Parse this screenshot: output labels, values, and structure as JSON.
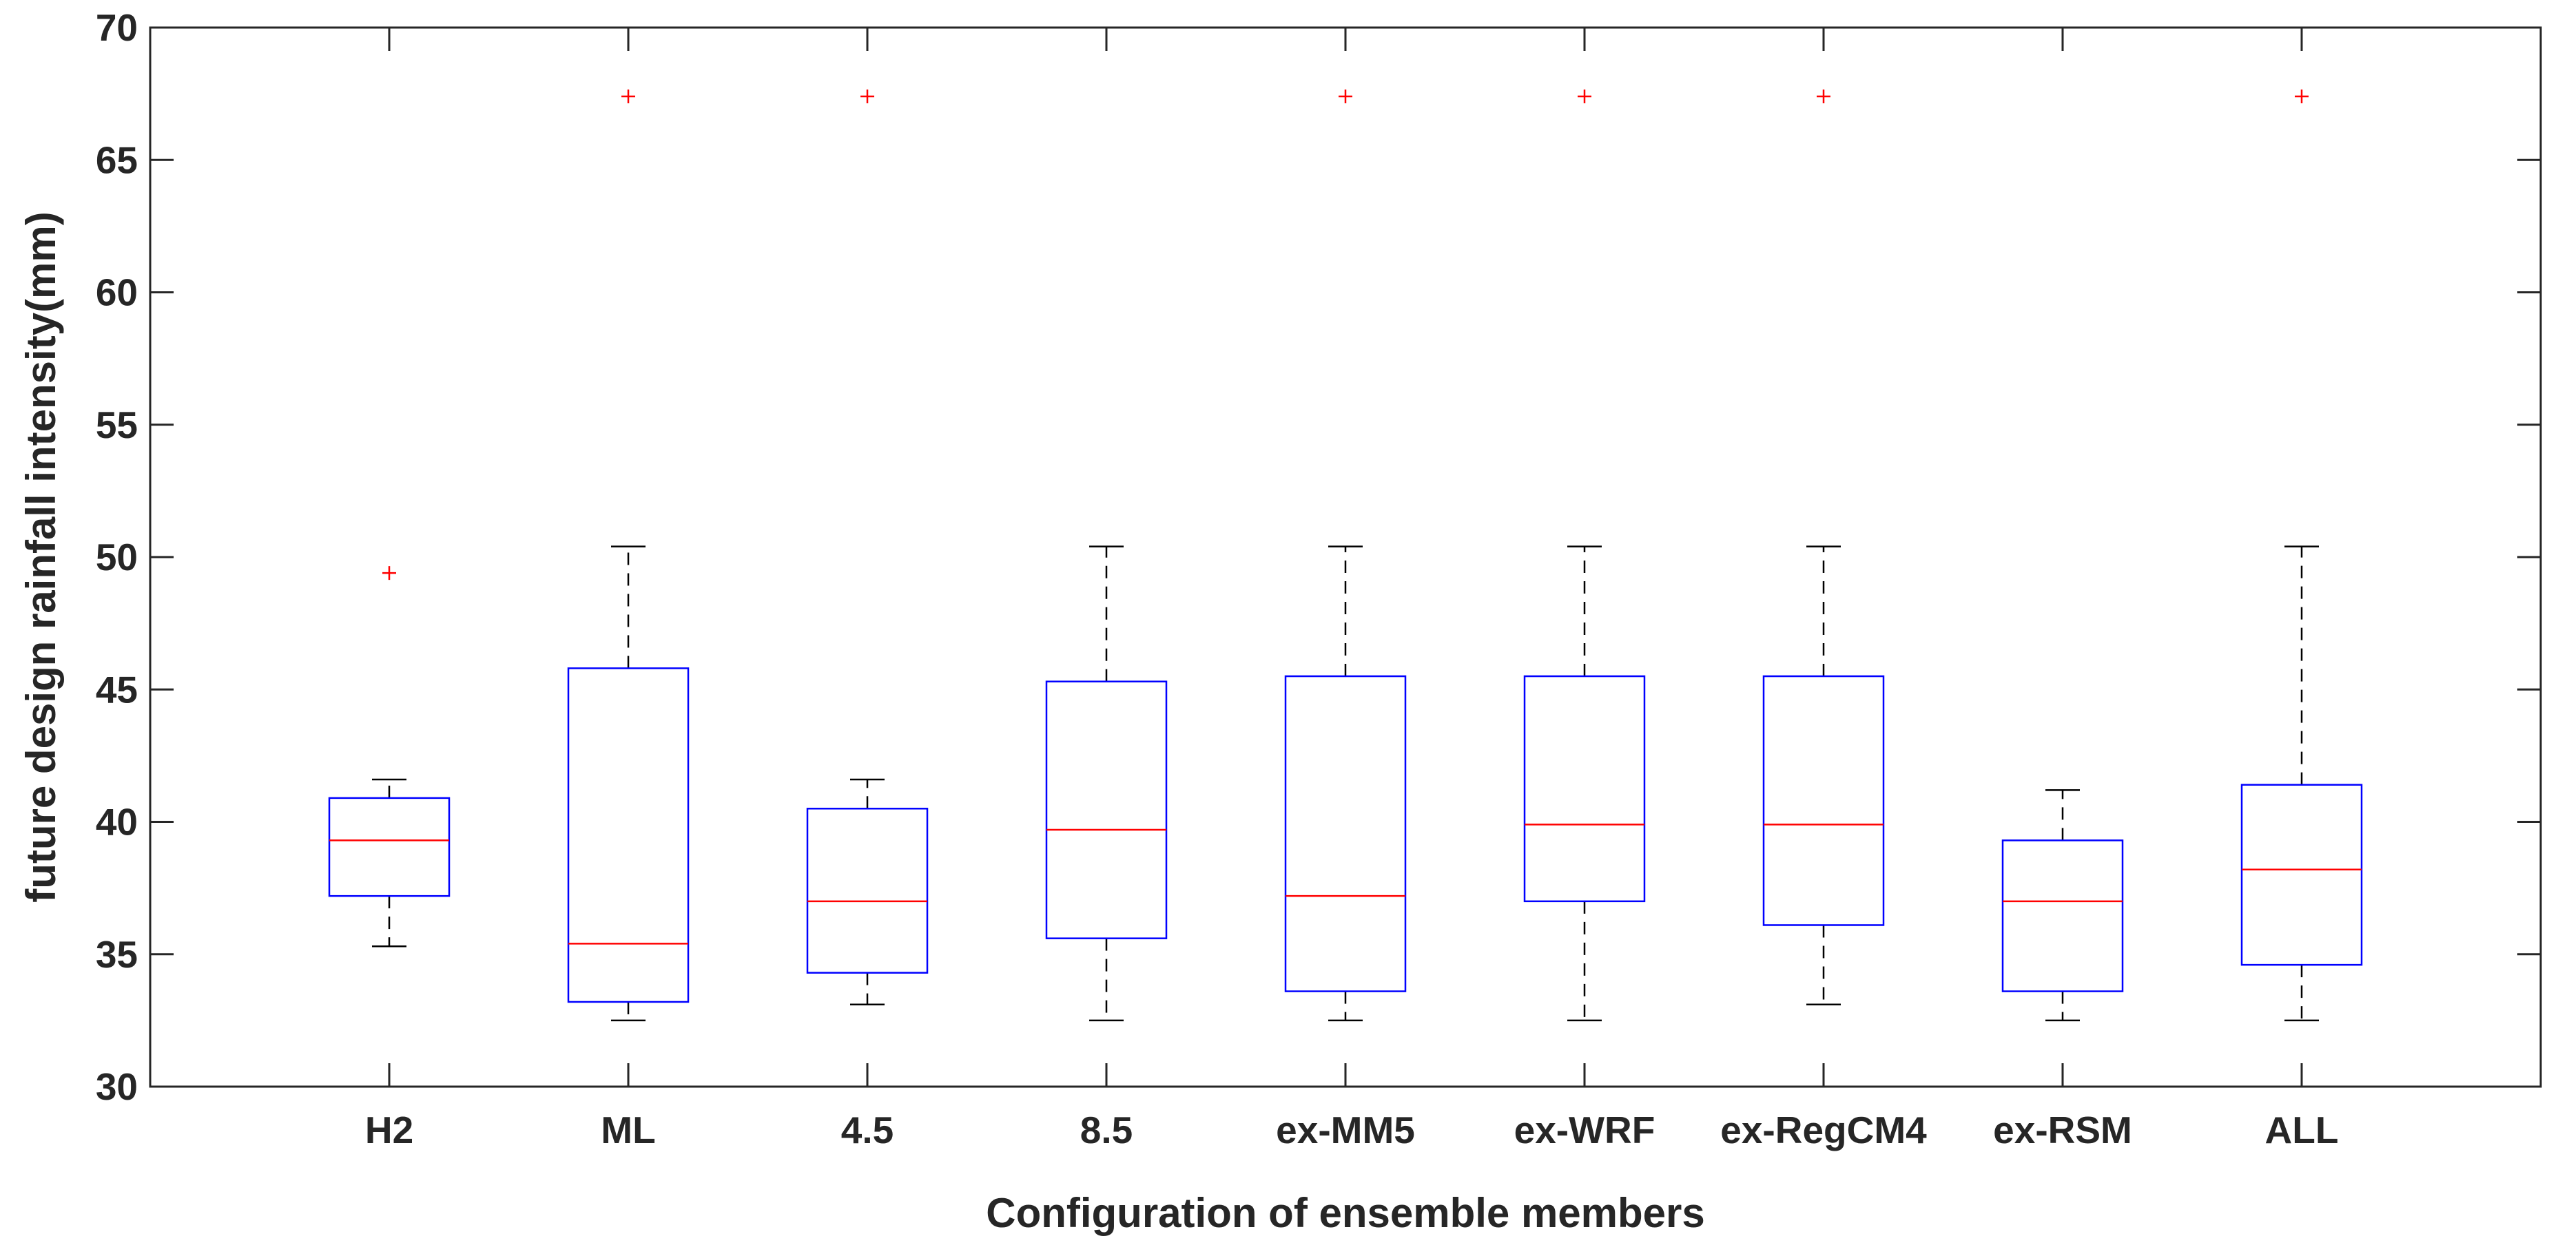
{
  "chart_data": {
    "type": "boxplot",
    "title": "",
    "xlabel": "Configuration of ensemble members",
    "ylabel": "future design rainfall intensity(mm)",
    "ylim": [
      30,
      70
    ],
    "yticks": [
      30,
      35,
      40,
      45,
      50,
      55,
      60,
      65,
      70
    ],
    "categories": [
      "H2",
      "ML",
      "4.5",
      "8.5",
      "ex-MM5",
      "ex-WRF",
      "ex-RegCM4",
      "ex-RSM",
      "ALL"
    ],
    "boxes": [
      {
        "category": "H2",
        "whisker_low": 35.3,
        "q1": 37.2,
        "median": 39.3,
        "q3": 40.9,
        "whisker_high": 41.6,
        "outliers": [
          49.4
        ]
      },
      {
        "category": "ML",
        "whisker_low": 32.5,
        "q1": 33.2,
        "median": 35.4,
        "q3": 45.8,
        "whisker_high": 50.4,
        "outliers": [
          67.4
        ]
      },
      {
        "category": "4.5",
        "whisker_low": 33.1,
        "q1": 34.3,
        "median": 37.0,
        "q3": 40.5,
        "whisker_high": 41.6,
        "outliers": [
          67.4
        ]
      },
      {
        "category": "8.5",
        "whisker_low": 32.5,
        "q1": 35.6,
        "median": 39.7,
        "q3": 45.3,
        "whisker_high": 50.4,
        "outliers": []
      },
      {
        "category": "ex-MM5",
        "whisker_low": 32.5,
        "q1": 33.6,
        "median": 37.2,
        "q3": 45.5,
        "whisker_high": 50.4,
        "outliers": [
          67.4
        ]
      },
      {
        "category": "ex-WRF",
        "whisker_low": 32.5,
        "q1": 37.0,
        "median": 39.9,
        "q3": 45.5,
        "whisker_high": 50.4,
        "outliers": [
          67.4
        ]
      },
      {
        "category": "ex-RegCM4",
        "whisker_low": 33.1,
        "q1": 36.1,
        "median": 39.9,
        "q3": 45.5,
        "whisker_high": 50.4,
        "outliers": [
          67.4
        ]
      },
      {
        "category": "ex-RSM",
        "whisker_low": 32.5,
        "q1": 33.6,
        "median": 37.0,
        "q3": 39.3,
        "whisker_high": 41.2,
        "outliers": []
      },
      {
        "category": "ALL",
        "whisker_low": 32.5,
        "q1": 34.6,
        "median": 38.2,
        "q3": 41.4,
        "whisker_high": 50.4,
        "outliers": [
          67.4
        ]
      }
    ],
    "colors": {
      "box": "#0000ff",
      "median": "#ff0000",
      "whisker": "#000000",
      "outlier": "#ff0000",
      "axis": "#262626"
    }
  }
}
